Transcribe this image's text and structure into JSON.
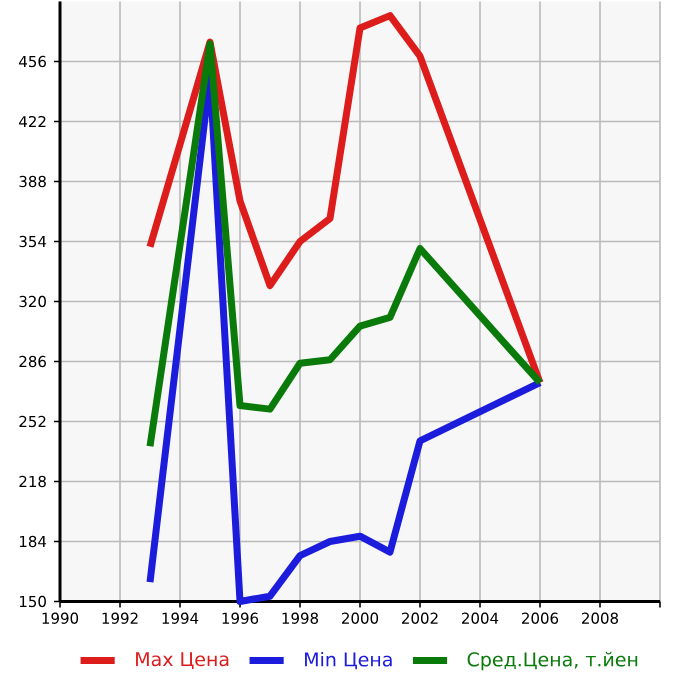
{
  "chart_data": {
    "type": "line",
    "x": [
      1993,
      1995,
      1996,
      1997,
      1998,
      1999,
      2000,
      2001,
      2002,
      2006
    ],
    "series": [
      {
        "name": "Max Цена",
        "color": "#dd1c1c",
        "values": [
          351,
          467,
          377,
          329,
          354,
          367,
          475,
          482,
          459,
          274
        ]
      },
      {
        "name": "Min Цена",
        "color": "#1c1cdd",
        "values": [
          161,
          448,
          150,
          153,
          176,
          184,
          187,
          178,
          241,
          274
        ]
      },
      {
        "name": "Сред.Цена, т.йен",
        "color": "#0a7a0a",
        "values": [
          238,
          466,
          261,
          259,
          285,
          287,
          306,
          311,
          350,
          274
        ]
      }
    ],
    "xlim": [
      1990,
      2010
    ],
    "ylim": [
      150,
      490
    ],
    "xticks": [
      1990,
      1992,
      1994,
      1996,
      1998,
      2000,
      2002,
      2004,
      2006,
      2008,
      {
        "value": 2010,
        "label": null
      }
    ],
    "yticks": [
      150,
      184,
      218,
      252,
      286,
      320,
      354,
      388,
      422,
      456
    ],
    "grid": true,
    "legend": "bottom",
    "marker": "none",
    "line_style": "solid"
  }
}
